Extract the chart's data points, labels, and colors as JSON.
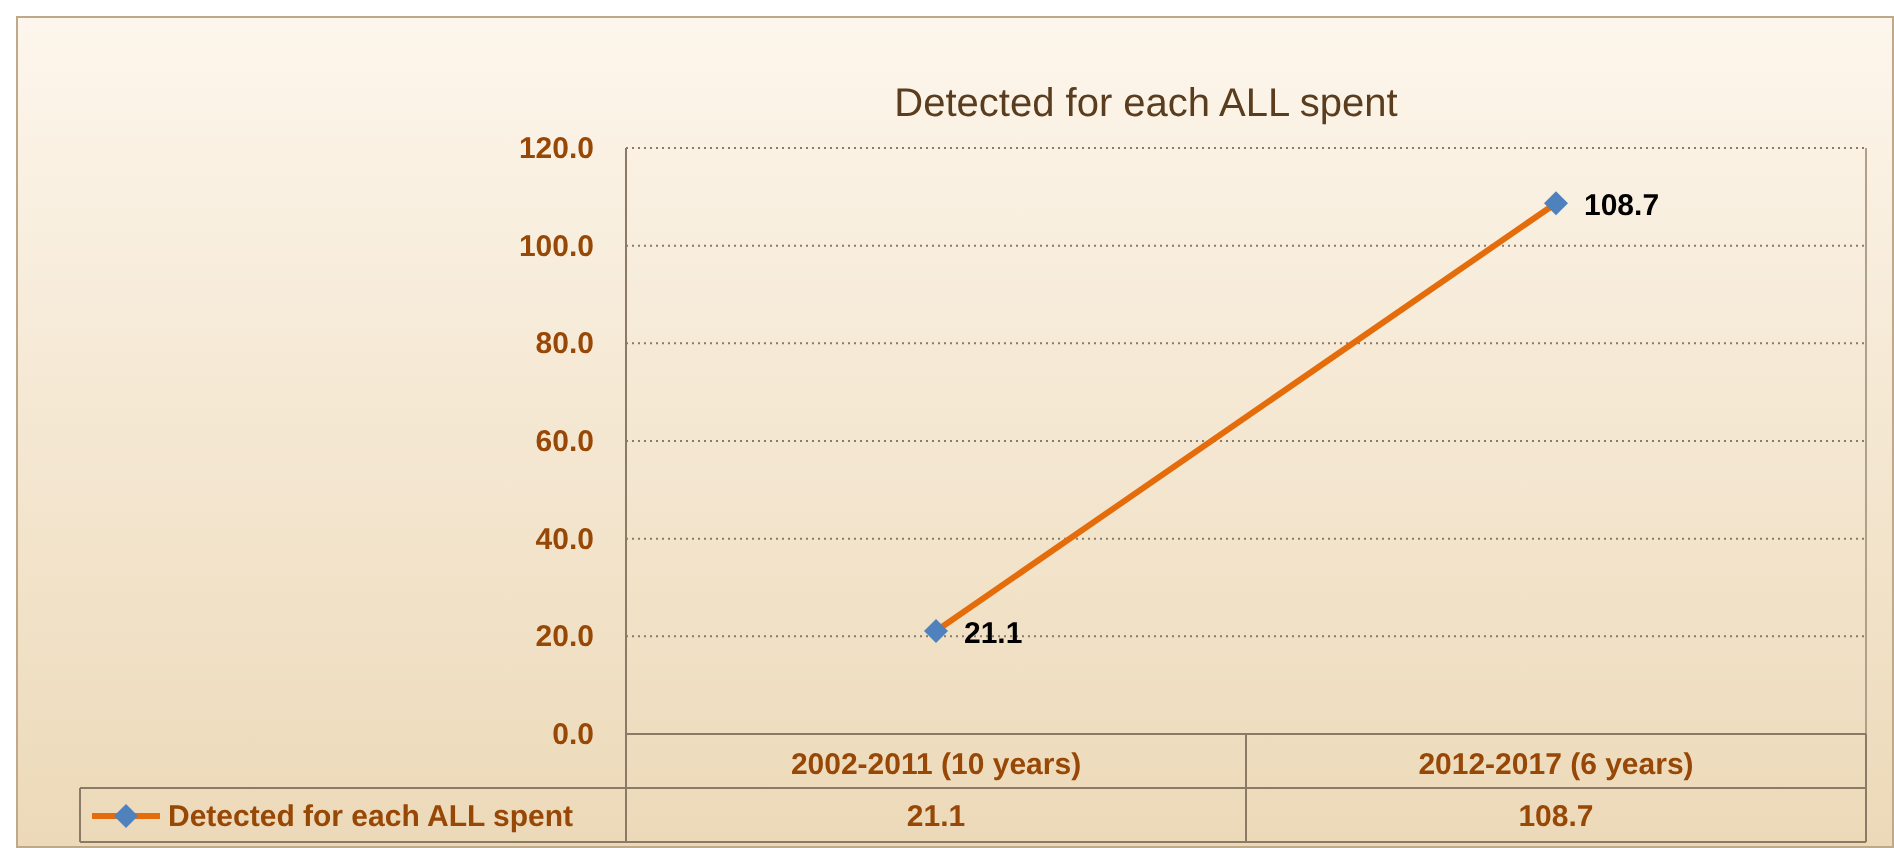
{
  "chart_data": {
    "type": "line",
    "title": "Detected for each ALL spent",
    "categories": [
      "2002-2011 (10 years)",
      "2012-2017 (6 years)"
    ],
    "series": [
      {
        "name": "Detected for each ALL spent",
        "color": "#e46c0a",
        "values": [
          21.1,
          108.7
        ],
        "value_labels": [
          "21.1",
          "108.7"
        ]
      }
    ],
    "ylim": [
      0,
      120
    ],
    "yticks": [
      {
        "value": 0,
        "label": "0.0"
      },
      {
        "value": 20,
        "label": "20.0"
      },
      {
        "value": 40,
        "label": "40.0"
      },
      {
        "value": 60,
        "label": "60.0"
      },
      {
        "value": 80,
        "label": "80.0"
      },
      {
        "value": 100,
        "label": "100.0"
      },
      {
        "value": 120,
        "label": "120.0"
      }
    ],
    "grid": "y",
    "marker": "diamond",
    "line_style": "solid",
    "legend": "bottom",
    "data_labels": true
  }
}
